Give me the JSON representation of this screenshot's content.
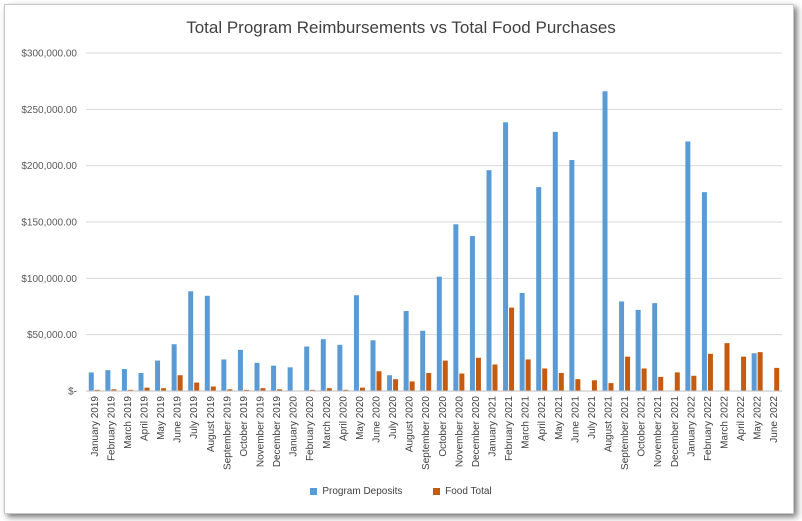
{
  "chart_data": {
    "type": "bar",
    "title": "Total Program Reimbursements vs Total Food Purchases",
    "categories": [
      "January 2019",
      "February 2019",
      "March 2019",
      "April 2019",
      "May 2019",
      "June 2019",
      "July 2019",
      "August 2019",
      "September 2019",
      "October 2019",
      "November 2019",
      "December 2019",
      "January 2020",
      "February 2020",
      "March 2020",
      "April 2020",
      "May 2020",
      "June 2020",
      "July 2020",
      "August 2020",
      "September 2020",
      "October 2020",
      "November 2020",
      "December 2020",
      "January 2021",
      "February 2021",
      "March 2021",
      "April 2021",
      "May 2021",
      "June 2021",
      "July 2021",
      "August 2021",
      "September 2021",
      "October 2021",
      "November 2021",
      "December 2021",
      "January 2022",
      "February 2022",
      "March 2022",
      "April 2022",
      "May 2022",
      "June 2022"
    ],
    "series": [
      {
        "name": "Program Deposits",
        "color": "#5b9bd5",
        "values": [
          16500,
          18500,
          19500,
          16000,
          27000,
          41500,
          88500,
          84500,
          28000,
          36500,
          25000,
          22500,
          21000,
          39500,
          46000,
          41000,
          85000,
          45000,
          14000,
          71000,
          53500,
          101500,
          148000,
          137500,
          196000,
          238500,
          87000,
          181000,
          230000,
          205000,
          0,
          266000,
          79500,
          72000,
          78000,
          0,
          221500,
          176500,
          0,
          0,
          33500,
          0
        ]
      },
      {
        "name": "Food Total",
        "color": "#c55a11",
        "values": [
          1000,
          1500,
          1000,
          3000,
          2500,
          14000,
          7500,
          4000,
          1500,
          1000,
          2500,
          1500,
          0,
          1000,
          2500,
          1000,
          3000,
          17500,
          10500,
          8500,
          16000,
          27000,
          15500,
          29500,
          23500,
          74000,
          28000,
          20000,
          16000,
          10500,
          9500,
          7000,
          30500,
          20000,
          12500,
          16500,
          13500,
          33000,
          42500,
          30500,
          34500,
          20500
        ]
      }
    ],
    "ylim": [
      0,
      300000
    ],
    "yticks": [
      0,
      50000,
      100000,
      150000,
      200000,
      250000,
      300000
    ],
    "ytick_labels": [
      "$-",
      "$50,000.00",
      "$100,000.00",
      "$150,000.00",
      "$200,000.00",
      "$250,000.00",
      "$300,000.00"
    ],
    "grid": true,
    "legend_position": "bottom"
  }
}
